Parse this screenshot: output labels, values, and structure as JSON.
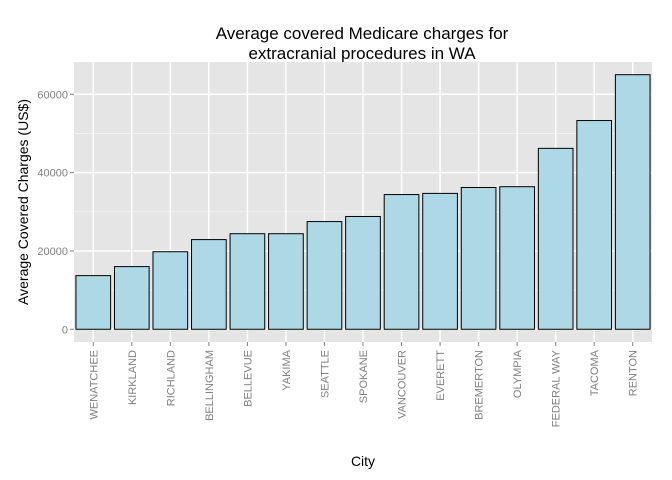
{
  "chart_data": {
    "type": "bar",
    "title_line1": "Average covered Medicare charges for",
    "title_line2": "extracranial procedures in WA",
    "xlabel": "City",
    "ylabel": "Average Covered Charges (US$)",
    "categories": [
      "WENATCHEE",
      "KIRKLAND",
      "RICHLAND",
      "BELLINGHAM",
      "BELLEVUE",
      "YAKIMA",
      "SEATTLE",
      "SPOKANE",
      "VANCOUVER",
      "EVERETT",
      "BREMERTON",
      "OLYMPIA",
      "FEDERAL WAY",
      "TACOMA",
      "RENTON"
    ],
    "values": [
      13700,
      16000,
      19800,
      22900,
      24400,
      24400,
      27500,
      28800,
      34400,
      34700,
      36200,
      36400,
      46200,
      53300,
      65000
    ],
    "yticks": [
      0,
      20000,
      40000,
      60000
    ],
    "ytick_labels": [
      "0",
      "20000",
      "40000",
      "60000"
    ],
    "ylim": [
      -3250,
      68250
    ],
    "grid": true,
    "colors": {
      "bar_fill": "#add8e6",
      "bar_stroke": "#000000",
      "panel_bg": "#e5e5e5",
      "grid_major": "#ffffff",
      "grid_minor": "#f2f2f2"
    }
  }
}
